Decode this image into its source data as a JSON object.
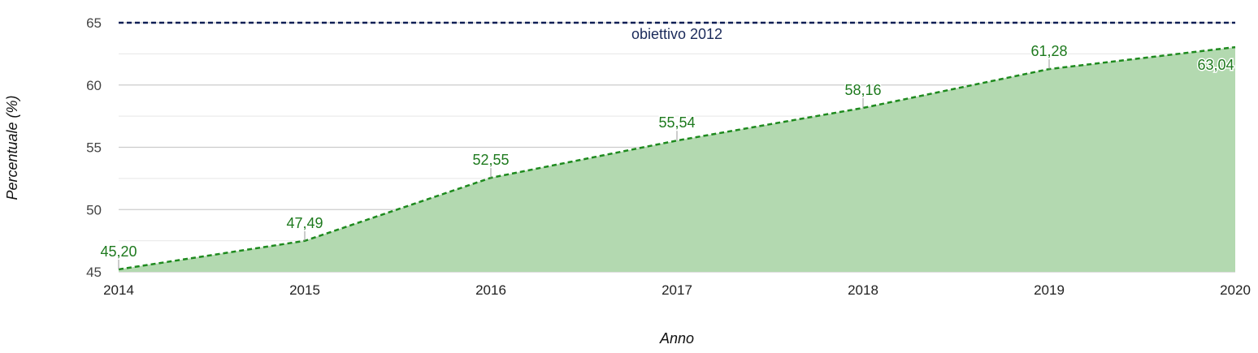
{
  "chart_data": {
    "type": "area",
    "title": "",
    "xlabel": "Anno",
    "ylabel": "Percentuale (%)",
    "categories": [
      "2014",
      "2015",
      "2016",
      "2017",
      "2018",
      "2019",
      "2020"
    ],
    "series": [
      {
        "name": "Percentuale",
        "values": [
          45.2,
          47.49,
          52.55,
          55.54,
          58.16,
          61.28,
          63.04
        ],
        "labels": [
          "45,20",
          "47,49",
          "52,55",
          "55,54",
          "58,16",
          "61,28",
          "63,04"
        ],
        "color": "#1e8a1e",
        "fill": "#b3d9b0",
        "line_style": "dashed"
      }
    ],
    "reference_line": {
      "label": "obiettivo 2012",
      "value": 65,
      "color": "#0f1f55",
      "line_style": "dashed"
    },
    "y_ticks": [
      45,
      50,
      55,
      60,
      65
    ],
    "ylim": [
      45,
      65
    ],
    "grid": true,
    "legend": "none"
  }
}
